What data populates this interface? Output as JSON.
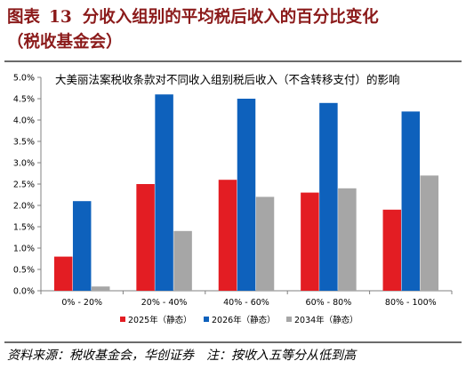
{
  "figure": {
    "label": "图表",
    "number": "13",
    "title_line1": "分收入组别的平均税后收入的百分比变化",
    "title_line2": "（税收基金会）"
  },
  "footer": {
    "source": "资料来源：税收基金会，华创证券",
    "note": "注：按收入五等分从低到高"
  },
  "colors": {
    "title": "#8b1a1a",
    "axis": "#808080"
  },
  "chart_data": {
    "type": "bar",
    "title": "大美丽法案税收条款对不同收入组别税后收入（不含转移支付）的影响",
    "categories": [
      "0% - 20%",
      "20% - 40%",
      "40% - 60%",
      "60% - 80%",
      "80% - 100%"
    ],
    "series": [
      {
        "name": "2025年（静态）",
        "color": "#e31d23",
        "values": [
          0.8,
          2.5,
          2.6,
          2.3,
          1.9
        ]
      },
      {
        "name": "2026年（静态）",
        "color": "#0e61bc",
        "values": [
          2.1,
          4.6,
          4.5,
          4.4,
          4.2
        ]
      },
      {
        "name": "2034年（静态）",
        "color": "#a6a6a6",
        "values": [
          0.1,
          1.4,
          2.2,
          2.4,
          2.7
        ]
      }
    ],
    "yticks": [
      "0.0%",
      "0.5%",
      "1.0%",
      "1.5%",
      "2.0%",
      "2.5%",
      "3.0%",
      "3.5%",
      "4.0%",
      "4.5%",
      "5.0%"
    ],
    "ylim": [
      0,
      5
    ],
    "y_unit": "%",
    "grid": false,
    "legend_position": "bottom"
  }
}
